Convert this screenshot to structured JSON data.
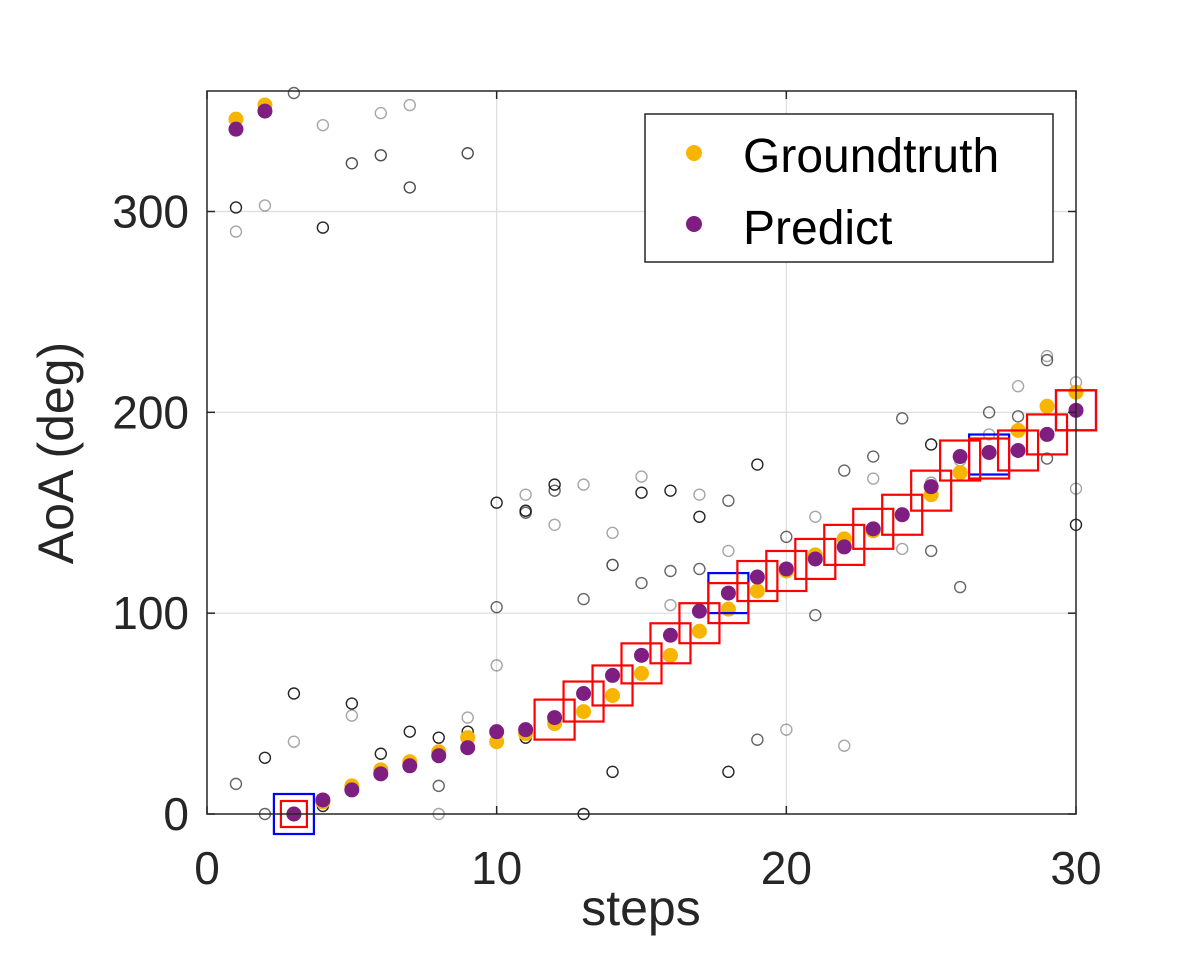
{
  "chart_data": {
    "type": "scatter",
    "title": "",
    "xlabel": "steps",
    "ylabel": "AoA (deg)",
    "xlim": [
      0,
      30
    ],
    "ylim": [
      0,
      360
    ],
    "xticks": [
      0,
      10,
      20,
      30
    ],
    "yticks": [
      0,
      100,
      200,
      300
    ],
    "grid": true,
    "legend_position": "top-right",
    "legend": [
      "Groundtruth",
      "Predict"
    ],
    "colors": {
      "groundtruth": "#F7B500",
      "predict": "#7E1E80",
      "candidates": "#000000",
      "selected_box": "#FF0000",
      "alt_box": "#0000FF",
      "grid": "#DCDCDC",
      "axis": "#262626"
    },
    "series": [
      {
        "name": "Groundtruth",
        "marker": "filled-circle",
        "x": [
          1,
          2,
          3,
          4,
          5,
          6,
          7,
          8,
          9,
          10,
          11,
          12,
          13,
          14,
          15,
          16,
          17,
          18,
          19,
          20,
          21,
          22,
          23,
          24,
          25,
          26,
          27,
          28,
          29,
          30
        ],
        "y": [
          346,
          353,
          0,
          6,
          14,
          22,
          26,
          31,
          38,
          36,
          40,
          45,
          51,
          59,
          70,
          79,
          91,
          102,
          111,
          121,
          129,
          137,
          141,
          149,
          159,
          170,
          180,
          191,
          203,
          210
        ]
      },
      {
        "name": "Predict",
        "marker": "filled-circle",
        "x": [
          1,
          2,
          3,
          4,
          5,
          6,
          7,
          8,
          9,
          10,
          11,
          12,
          13,
          14,
          15,
          16,
          17,
          18,
          19,
          20,
          21,
          22,
          23,
          24,
          25,
          26,
          27,
          28,
          29,
          30
        ],
        "y": [
          341,
          350,
          0,
          7,
          12,
          20,
          24,
          29,
          33,
          41,
          42,
          48,
          60,
          69,
          79,
          89,
          101,
          110,
          118,
          122,
          127,
          133,
          142,
          149,
          163,
          178,
          180,
          181,
          189,
          201
        ]
      },
      {
        "marker": "open-circle",
        "points": [
          [
            1,
            302,
            0.85
          ],
          [
            1,
            290,
            0.35
          ],
          [
            1,
            15,
            0.6
          ],
          [
            1,
            346,
            0.8
          ],
          [
            2,
            28,
            0.85
          ],
          [
            2,
            303,
            0.35
          ],
          [
            2,
            353,
            0.8
          ],
          [
            2,
            0,
            0.6
          ],
          [
            3,
            60,
            0.85
          ],
          [
            3,
            36,
            0.35
          ],
          [
            3,
            359,
            0.6
          ],
          [
            3,
            0,
            0.85
          ],
          [
            4,
            292,
            0.85
          ],
          [
            4,
            343,
            0.35
          ],
          [
            4,
            4,
            0.85
          ],
          [
            5,
            55,
            0.85
          ],
          [
            5,
            49,
            0.35
          ],
          [
            5,
            324,
            0.7
          ],
          [
            5,
            14,
            0.85
          ],
          [
            6,
            30,
            0.85
          ],
          [
            6,
            328,
            0.7
          ],
          [
            6,
            349,
            0.35
          ],
          [
            6,
            22,
            0.85
          ],
          [
            7,
            41,
            0.85
          ],
          [
            7,
            312,
            0.7
          ],
          [
            7,
            353,
            0.35
          ],
          [
            7,
            26,
            0.85
          ],
          [
            8,
            38,
            0.85
          ],
          [
            8,
            14,
            0.6
          ],
          [
            8,
            0,
            0.35
          ],
          [
            8,
            31,
            0.85
          ],
          [
            9,
            41,
            0.85
          ],
          [
            9,
            48,
            0.35
          ],
          [
            9,
            329,
            0.7
          ],
          [
            10,
            155,
            0.85
          ],
          [
            10,
            103,
            0.6
          ],
          [
            10,
            74,
            0.35
          ],
          [
            10,
            40,
            0.85
          ],
          [
            11,
            151,
            0.85
          ],
          [
            11,
            150,
            0.6
          ],
          [
            11,
            159,
            0.35
          ],
          [
            11,
            38,
            0.85
          ],
          [
            12,
            164,
            0.85
          ],
          [
            12,
            161,
            0.6
          ],
          [
            12,
            144,
            0.35
          ],
          [
            12,
            45,
            0.85
          ],
          [
            13,
            107,
            0.6
          ],
          [
            13,
            164,
            0.35
          ],
          [
            13,
            0,
            0.85
          ],
          [
            13,
            51,
            0.85
          ],
          [
            14,
            124,
            0.7
          ],
          [
            14,
            140,
            0.35
          ],
          [
            14,
            21,
            0.85
          ],
          [
            14,
            59,
            0.85
          ],
          [
            15,
            160,
            0.85
          ],
          [
            15,
            168,
            0.35
          ],
          [
            15,
            115,
            0.6
          ],
          [
            15,
            70,
            0.85
          ],
          [
            16,
            161,
            0.85
          ],
          [
            16,
            104,
            0.35
          ],
          [
            16,
            121,
            0.6
          ],
          [
            16,
            79,
            0.85
          ],
          [
            17,
            148,
            0.85
          ],
          [
            17,
            159,
            0.35
          ],
          [
            17,
            122,
            0.6
          ],
          [
            17,
            91,
            0.85
          ],
          [
            18,
            156,
            0.6
          ],
          [
            18,
            131,
            0.35
          ],
          [
            18,
            21,
            0.85
          ],
          [
            18,
            102,
            0.85
          ],
          [
            19,
            174,
            0.85
          ],
          [
            19,
            37,
            0.6
          ],
          [
            19,
            111,
            0.85
          ],
          [
            20,
            138,
            0.6
          ],
          [
            20,
            42,
            0.35
          ],
          [
            20,
            121,
            0.85
          ],
          [
            21,
            148,
            0.35
          ],
          [
            21,
            99,
            0.6
          ],
          [
            21,
            129,
            0.85
          ],
          [
            22,
            171,
            0.6
          ],
          [
            22,
            34,
            0.35
          ],
          [
            22,
            137,
            0.85
          ],
          [
            23,
            178,
            0.6
          ],
          [
            23,
            167,
            0.35
          ],
          [
            23,
            141,
            0.85
          ],
          [
            24,
            197,
            0.6
          ],
          [
            24,
            132,
            0.35
          ],
          [
            24,
            149,
            0.85
          ],
          [
            25,
            184,
            0.85
          ],
          [
            25,
            131,
            0.6
          ],
          [
            25,
            165,
            0.35
          ],
          [
            25,
            159,
            0.85
          ],
          [
            26,
            113,
            0.6
          ],
          [
            26,
            176,
            0.35
          ],
          [
            26,
            170,
            0.85
          ],
          [
            27,
            200,
            0.6
          ],
          [
            27,
            189,
            0.35
          ],
          [
            27,
            180,
            0.85
          ],
          [
            28,
            213,
            0.35
          ],
          [
            28,
            198,
            0.6
          ],
          [
            28,
            191,
            0.85
          ],
          [
            29,
            228,
            0.35
          ],
          [
            29,
            226,
            0.6
          ],
          [
            29,
            177,
            0.6
          ],
          [
            29,
            203,
            0.85
          ],
          [
            30,
            215,
            0.35
          ],
          [
            30,
            162,
            0.35
          ],
          [
            30,
            144,
            0.85
          ],
          [
            30,
            210,
            0.85
          ]
        ]
      },
      {
        "marker": "square",
        "color": "red",
        "x": [
          3,
          12,
          13,
          14,
          15,
          16,
          17,
          18,
          19,
          20,
          21,
          22,
          23,
          24,
          25,
          26,
          27,
          28,
          29,
          30
        ],
        "y": [
          0,
          47,
          56,
          64,
          75,
          85,
          95,
          105,
          116,
          121,
          127,
          134,
          142,
          149,
          161,
          176,
          177,
          181,
          189,
          201
        ]
      },
      {
        "marker": "square",
        "color": "blue",
        "x": [
          3,
          18,
          27,
          30
        ],
        "y": [
          0,
          110,
          179,
          201
        ]
      }
    ]
  }
}
